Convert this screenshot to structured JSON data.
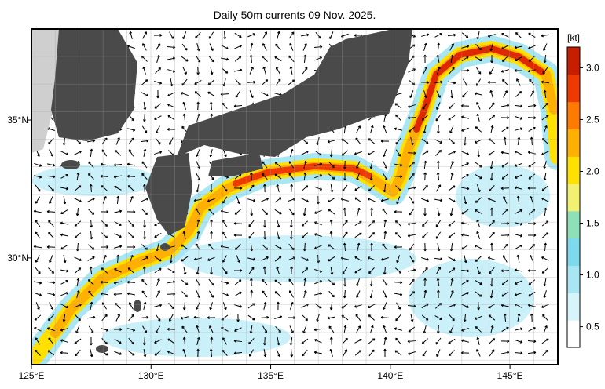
{
  "map": {
    "title": "Daily 50m currents 09 Nov. 2025.",
    "xlim": [
      125,
      147
    ],
    "xticks": [
      {
        "value": 125,
        "label": "125°E"
      },
      {
        "value": 130,
        "label": "130°E"
      },
      {
        "value": 135,
        "label": "135°E"
      },
      {
        "value": 140,
        "label": "140°E"
      },
      {
        "value": 145,
        "label": "145°E"
      }
    ],
    "ylim": [
      26.13,
      38.3
    ],
    "yticks": [
      {
        "value": 30,
        "label": "30°N"
      },
      {
        "value": 35,
        "label": "35°N"
      }
    ],
    "colorbar": {
      "unit": "[kt]",
      "lim": [
        0.3,
        3.2
      ],
      "ticks": [
        0.5,
        {
          "value": 1,
          "label": "1.0"
        },
        1.5,
        {
          "value": 2,
          "label": "2.0"
        },
        2.5,
        {
          "value": 3,
          "label": "3.0"
        }
      ],
      "colors": [
        "#ffffff",
        "#d6f4fa",
        "#a8e6f4",
        "#7fd9ee",
        "#8ee0b8",
        "#f2f070",
        "#ffe000",
        "#ffb000",
        "#ff7a00",
        "#ee3a00",
        "#c81e00"
      ]
    }
  }
}
